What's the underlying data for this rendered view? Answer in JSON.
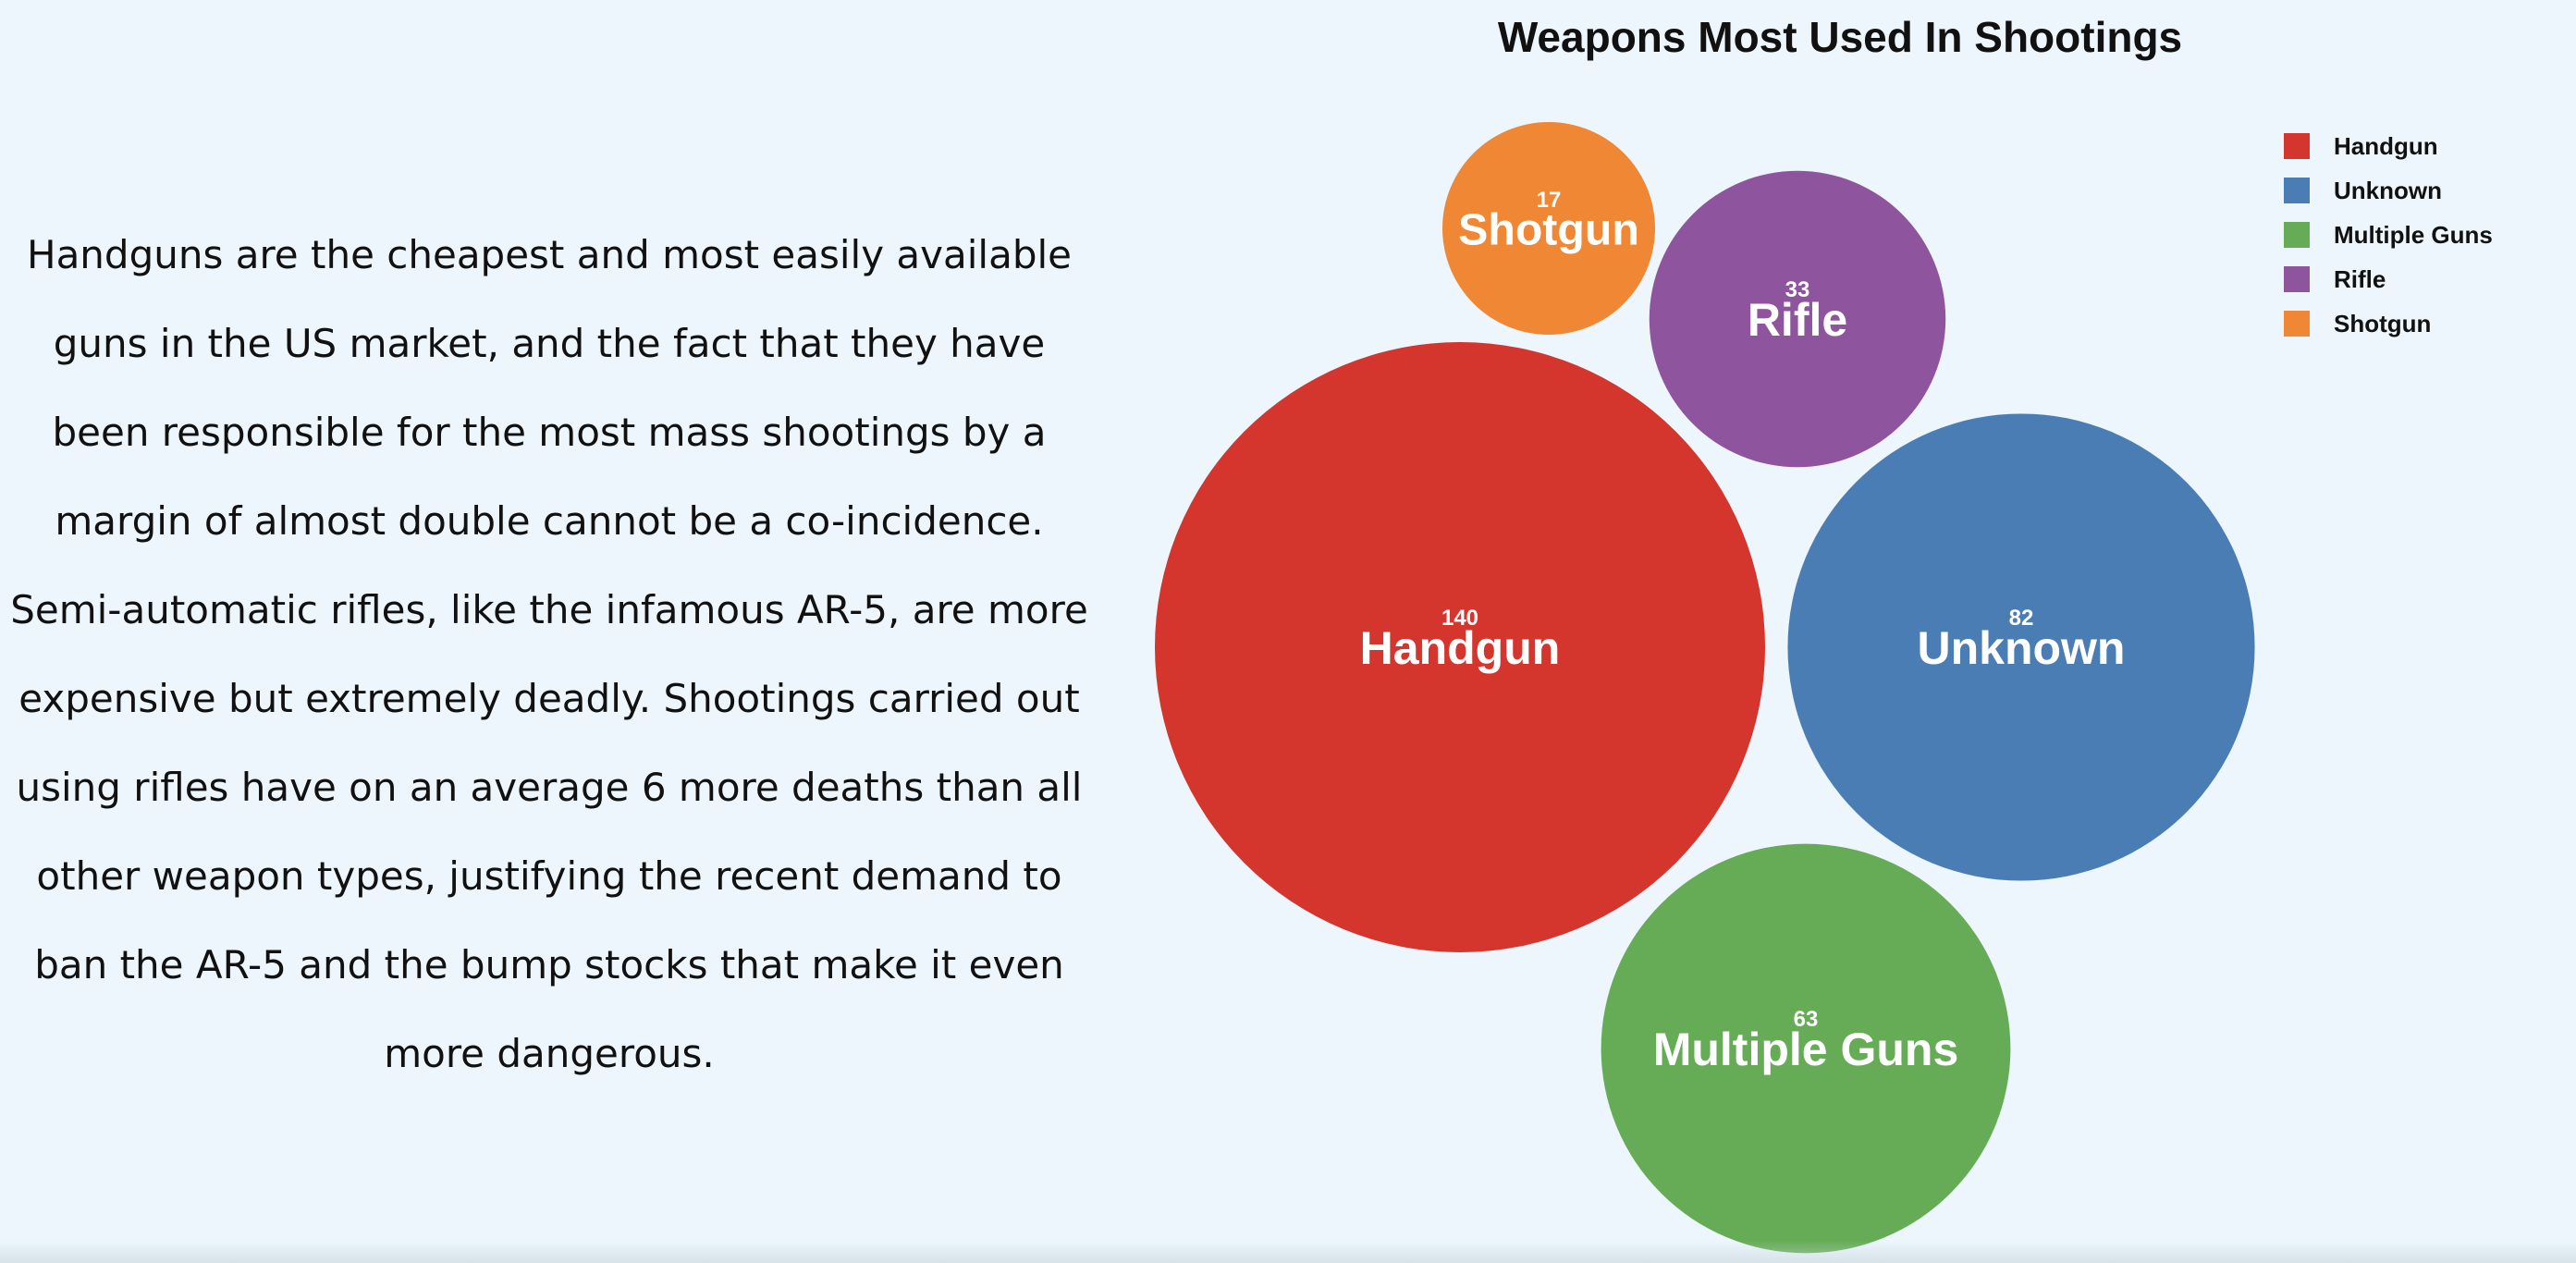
{
  "narrative": "Handguns are the cheapest and most easily available guns in the US market, and the fact that they have been responsible for the most mass shootings by a margin of almost double cannot be a co-incidence. Semi-automatic rifles, like the infamous AR-5, are more expensive but extremely deadly. Shootings carried out using rifles have on an average 6 more deaths than all other weapon types, justifying the recent demand to ban the AR-5 and the bump stocks that make it even more dangerous.",
  "chart_data": {
    "type": "bubble",
    "title": "Weapons Most Used In Shootings",
    "categories": [
      "Handgun",
      "Unknown",
      "Multiple Guns",
      "Rifle",
      "Shotgun"
    ],
    "values": [
      140,
      82,
      63,
      33,
      17
    ],
    "colors": [
      "#d4352c",
      "#4a7db3",
      "#66ac56",
      "#8e549e",
      "#f08734"
    ],
    "legend": {
      "position": "top-right",
      "entries": [
        "Handgun",
        "Unknown",
        "Multiple Guns",
        "Rifle",
        "Shotgun"
      ]
    }
  }
}
